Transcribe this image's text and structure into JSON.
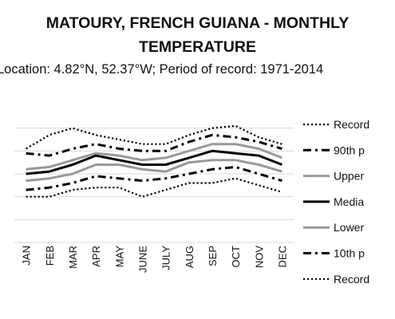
{
  "chart_data": {
    "type": "line",
    "title_line1": "MATOURY, FRENCH GUIANA - MONTHLY",
    "title_line2": "TEMPERATURE",
    "subtitle": "Location: 4.82°N, 52.37°W; Period of record: 1971-2014",
    "categories": [
      "JAN",
      "FEB",
      "MAR",
      "APR",
      "MAY",
      "JUNE",
      "JULY",
      "AUG",
      "SEP",
      "OCT",
      "NOV",
      "DEC"
    ],
    "y_grid": [
      0,
      1,
      2,
      3,
      4,
      5
    ],
    "ylim": [
      0,
      6
    ],
    "grid": "horizontal",
    "legend_position": "right",
    "series": [
      {
        "name": "Record",
        "legend_label": "Record",
        "style": "dotted",
        "color": "#000000",
        "width": 2.2,
        "values": [
          4.1,
          4.7,
          5.0,
          4.7,
          4.5,
          4.3,
          4.3,
          4.7,
          5.0,
          5.1,
          4.6,
          4.3
        ]
      },
      {
        "name": "90th p",
        "legend_label": "90th p",
        "style": "dashdot",
        "color": "#000000",
        "width": 3,
        "values": [
          3.9,
          3.8,
          4.1,
          4.3,
          4.1,
          4.0,
          4.0,
          4.4,
          4.7,
          4.6,
          4.4,
          4.1
        ]
      },
      {
        "name": "Upper",
        "legend_label": "Upper",
        "style": "solid",
        "color": "#999999",
        "width": 3,
        "values": [
          3.2,
          3.3,
          3.6,
          3.9,
          3.8,
          3.6,
          3.7,
          4.0,
          4.3,
          4.3,
          4.1,
          3.7
        ]
      },
      {
        "name": "Media",
        "legend_label": "Media",
        "style": "solid",
        "color": "#000000",
        "width": 3,
        "values": [
          3.0,
          3.1,
          3.4,
          3.8,
          3.6,
          3.4,
          3.4,
          3.7,
          4.0,
          3.9,
          3.8,
          3.4
        ]
      },
      {
        "name": "Lower",
        "legend_label": "Lower",
        "style": "solid",
        "color": "#999999",
        "width": 3,
        "values": [
          2.7,
          2.8,
          3.0,
          3.4,
          3.4,
          3.2,
          3.1,
          3.5,
          3.6,
          3.6,
          3.4,
          3.1
        ]
      },
      {
        "name": "10th p",
        "legend_label": "10th p",
        "style": "dashdot",
        "color": "#000000",
        "width": 3,
        "values": [
          2.3,
          2.4,
          2.6,
          2.9,
          2.8,
          2.7,
          2.8,
          3.0,
          3.2,
          3.3,
          3.0,
          2.7
        ]
      },
      {
        "name": "Record",
        "legend_label": "Record",
        "style": "dotted",
        "color": "#000000",
        "width": 2.2,
        "values": [
          2.0,
          2.0,
          2.3,
          2.4,
          2.4,
          2.0,
          2.3,
          2.6,
          2.6,
          2.8,
          2.5,
          2.2
        ]
      }
    ]
  },
  "colors": {
    "gridline": "#d9d9d9",
    "text": "#111111"
  }
}
